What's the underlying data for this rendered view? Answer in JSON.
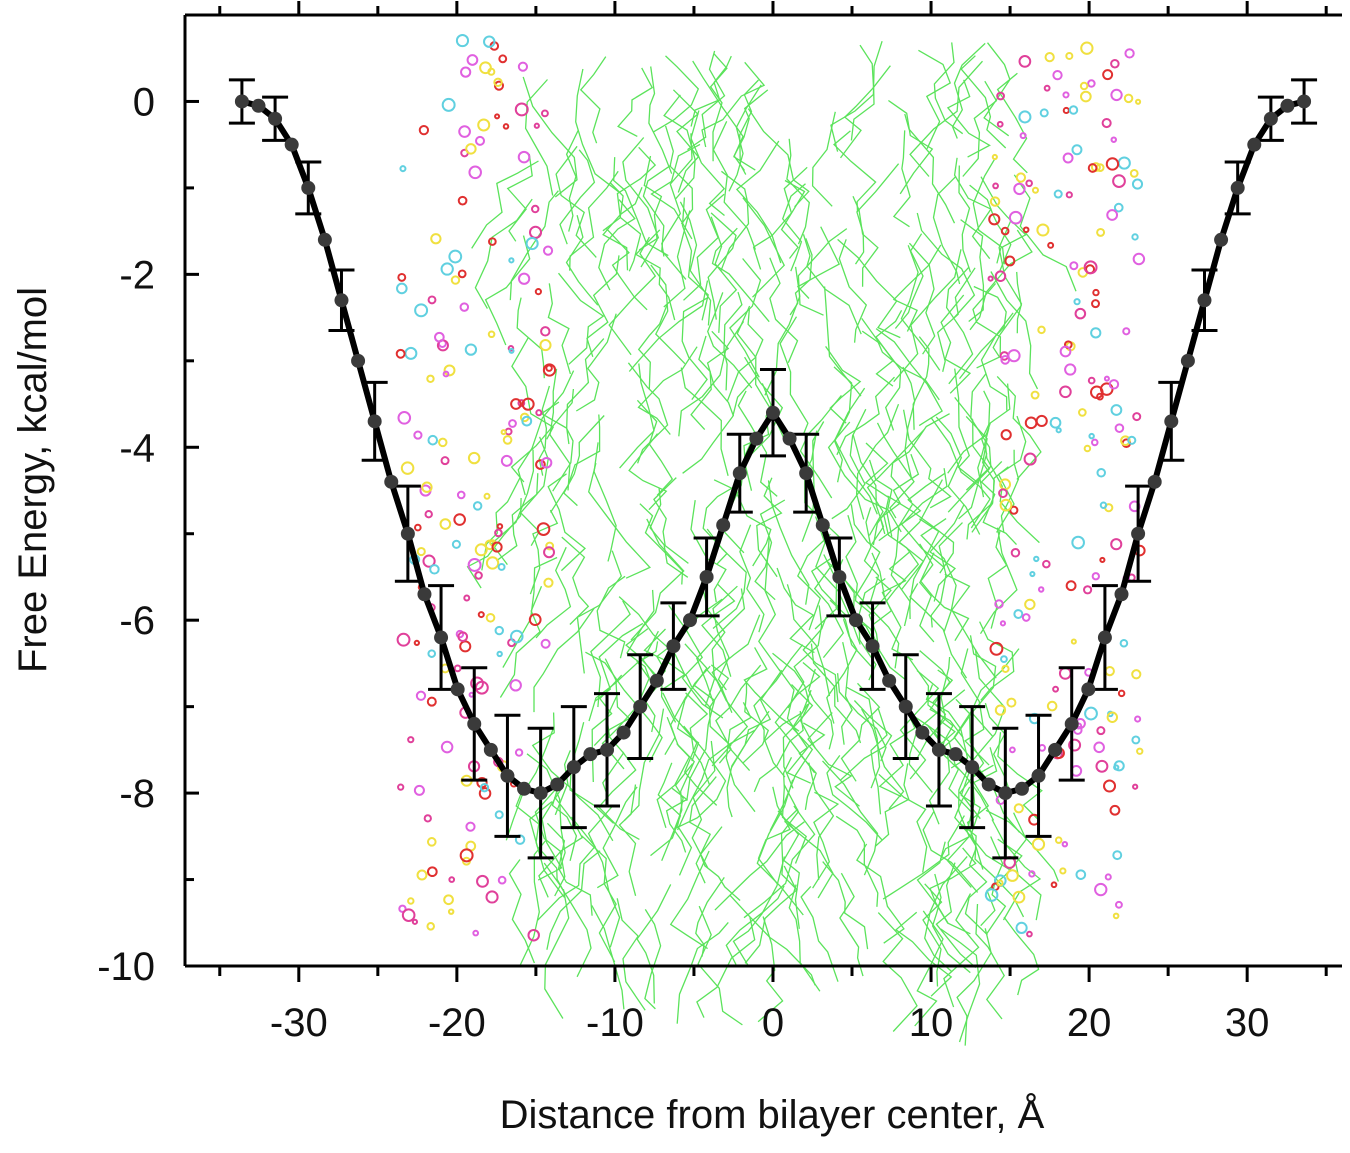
{
  "chart_data": {
    "type": "line",
    "xlabel": "Distance from bilayer center, Å",
    "ylabel": "Free Energy, kcal/mol",
    "x": [
      -33.6,
      -32.55,
      -31.5,
      -30.45,
      -29.4,
      -28.35,
      -27.3,
      -26.25,
      -25.2,
      -24.15,
      -23.1,
      -22.05,
      -21,
      -19.95,
      -18.9,
      -17.85,
      -16.8,
      -15.75,
      -14.7,
      -13.65,
      -12.6,
      -11.55,
      -10.5,
      -9.45,
      -8.4,
      -7.35,
      -6.3,
      -5.25,
      -4.2,
      -3.15,
      -2.1,
      -1.05,
      0,
      1.05,
      2.1,
      3.15,
      4.2,
      5.25,
      6.3,
      7.35,
      8.4,
      9.45,
      10.5,
      11.55,
      12.6,
      13.65,
      14.7,
      15.75,
      16.8,
      17.85,
      18.9,
      19.95,
      21,
      22.05,
      23.1,
      24.15,
      25.2,
      26.25,
      27.3,
      28.35,
      29.4,
      30.45,
      31.5,
      32.55,
      33.6
    ],
    "series": [
      {
        "color": "#000000",
        "marker_color": "#3a3a3a",
        "values": [
          0,
          -0.05,
          -0.2,
          -0.5,
          -1.0,
          -1.6,
          -2.3,
          -3.0,
          -3.7,
          -4.4,
          -5.0,
          -5.7,
          -6.2,
          -6.8,
          -7.2,
          -7.5,
          -7.8,
          -7.95,
          -8.0,
          -7.9,
          -7.7,
          -7.55,
          -7.5,
          -7.3,
          -7.0,
          -6.7,
          -6.3,
          -6.0,
          -5.5,
          -4.9,
          -4.3,
          -3.9,
          -3.6,
          -3.9,
          -4.3,
          -4.9,
          -5.5,
          -6.0,
          -6.3,
          -6.7,
          -7.0,
          -7.3,
          -7.5,
          -7.55,
          -7.7,
          -7.9,
          -8.0,
          -7.95,
          -7.8,
          -7.5,
          -7.2,
          -6.8,
          -6.2,
          -5.7,
          -5.0,
          -4.4,
          -3.7,
          -3.0,
          -2.3,
          -1.6,
          -1.0,
          -0.5,
          -0.2,
          -0.05,
          0
        ],
        "errors": [
          0.25,
          null,
          0.25,
          null,
          0.3,
          null,
          0.35,
          null,
          0.45,
          null,
          0.55,
          null,
          0.6,
          null,
          0.65,
          null,
          0.7,
          null,
          0.75,
          null,
          0.7,
          null,
          0.65,
          null,
          0.6,
          null,
          0.5,
          null,
          0.45,
          null,
          0.45,
          null,
          0.5,
          null,
          0.45,
          null,
          0.45,
          null,
          0.5,
          null,
          0.6,
          null,
          0.65,
          null,
          0.7,
          null,
          0.75,
          null,
          0.7,
          null,
          0.65,
          null,
          0.6,
          null,
          0.55,
          null,
          0.45,
          null,
          0.35,
          null,
          0.3,
          null,
          0.25,
          null,
          0.25
        ]
      }
    ],
    "xlim": [
      -37.2,
      36
    ],
    "ylim": [
      -10,
      1
    ],
    "xticks": [
      -30,
      -20,
      -10,
      0,
      10,
      20,
      30
    ],
    "yticks": [
      -10,
      -8,
      -6,
      -4,
      -2,
      0
    ]
  }
}
